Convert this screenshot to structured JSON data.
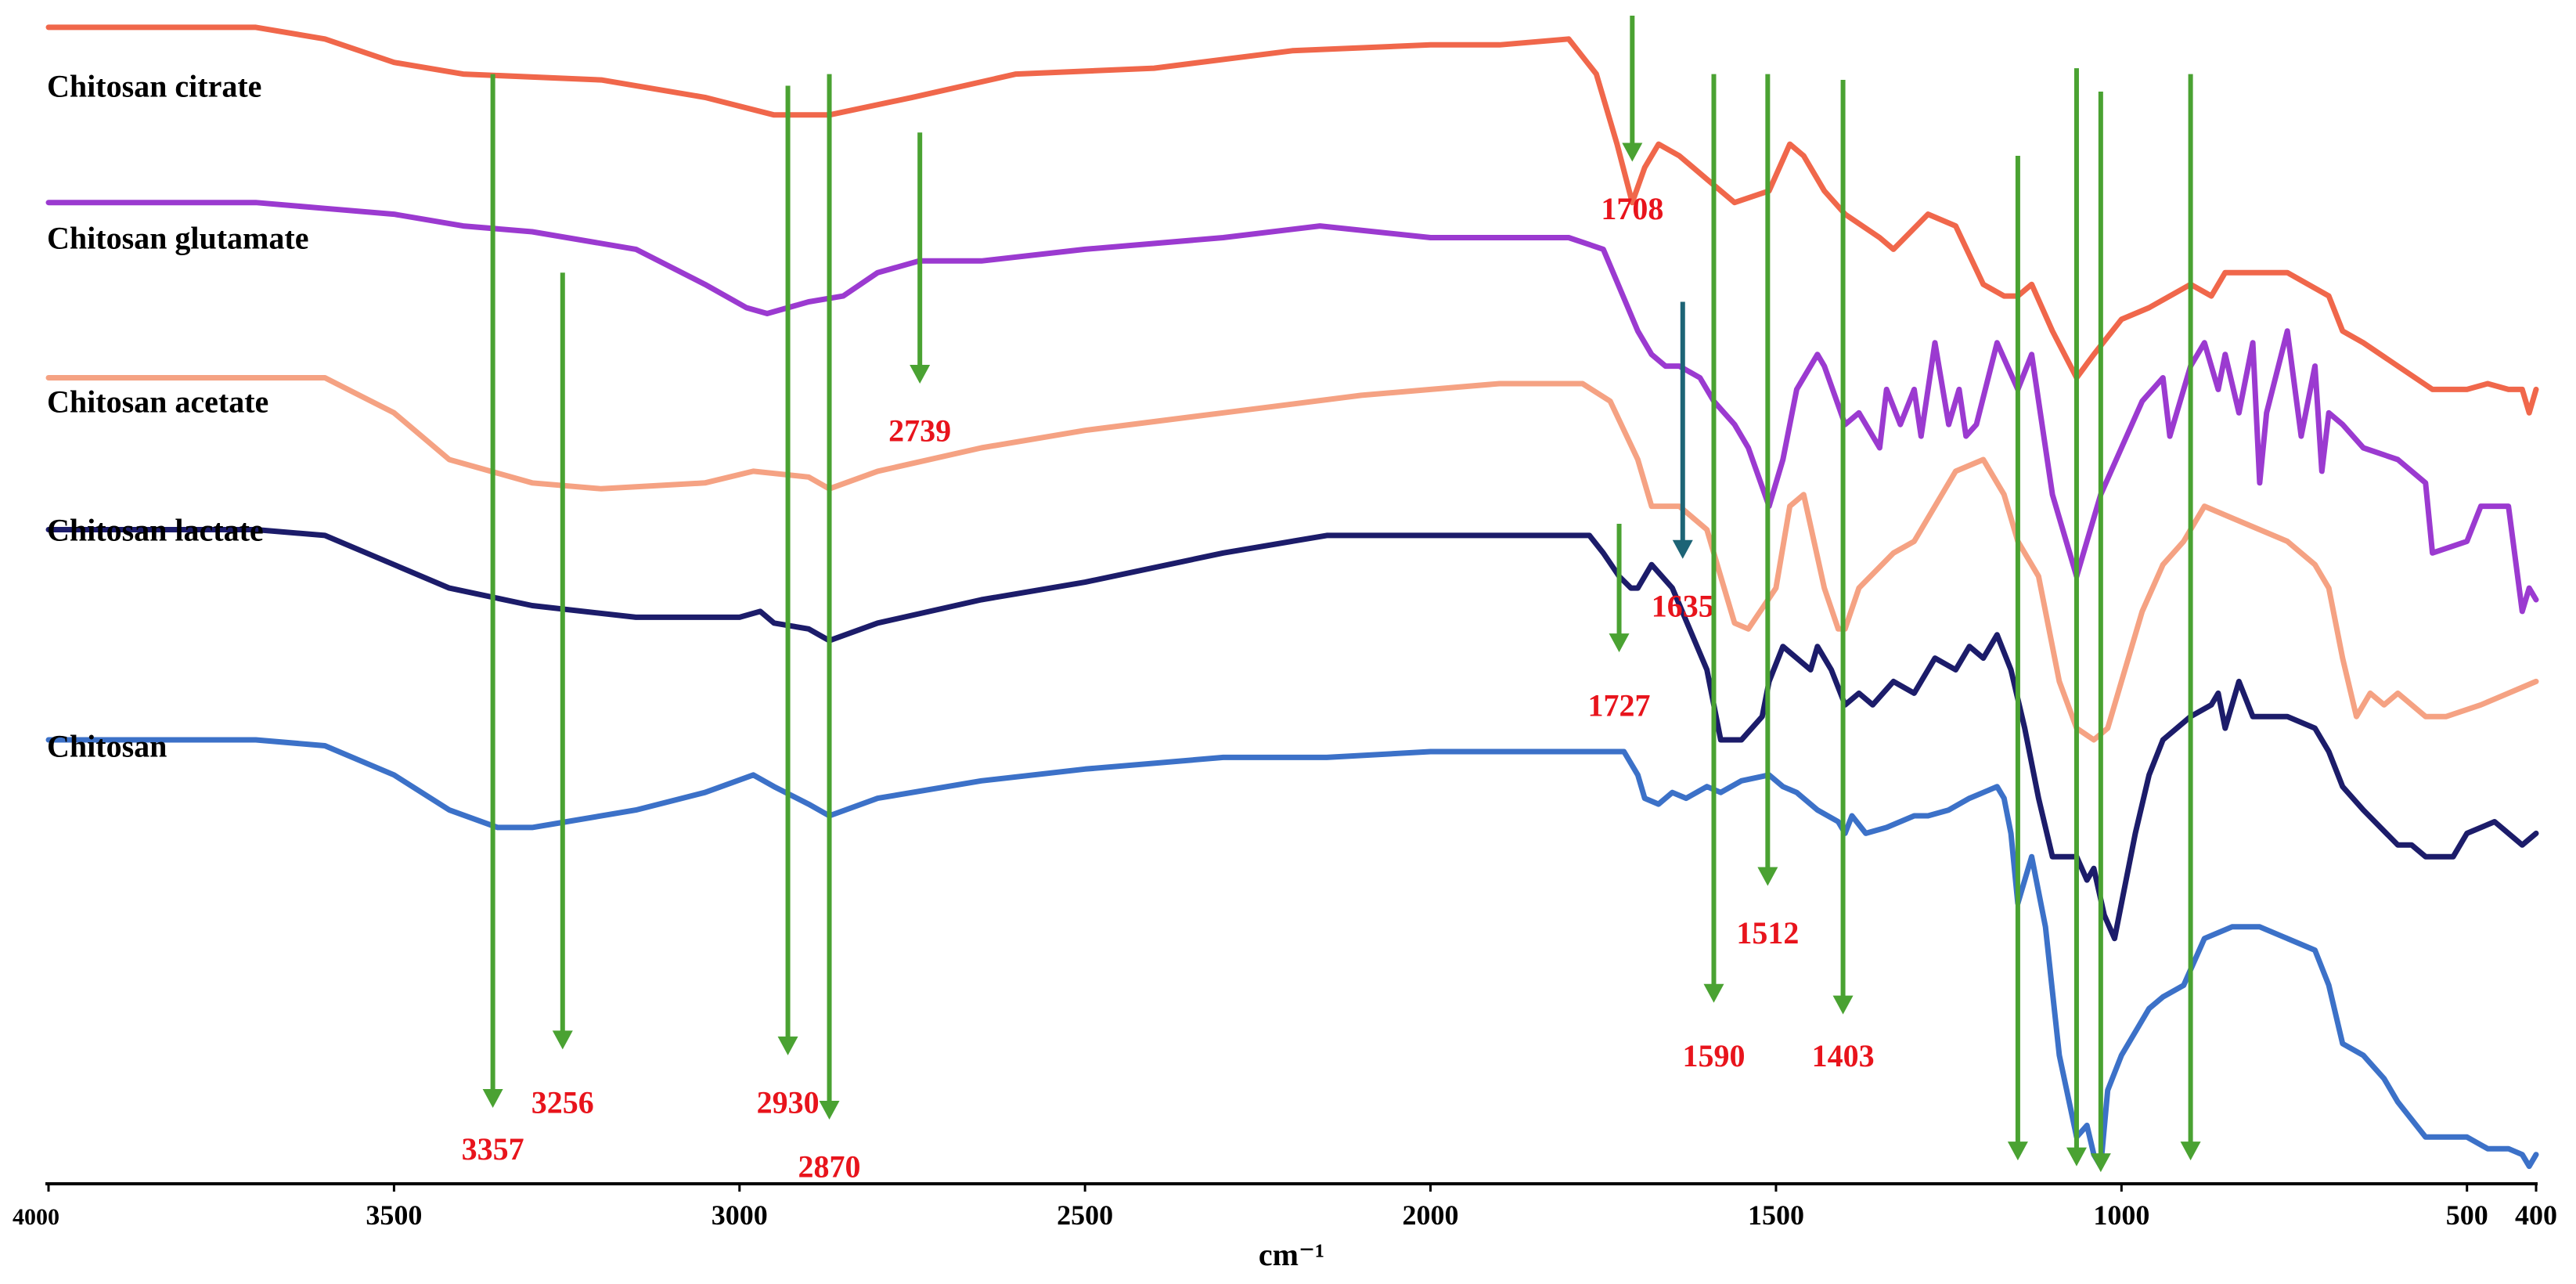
{
  "chart_data": {
    "type": "line",
    "xlabel": "cm⁻¹",
    "x_reversed": true,
    "xlim": [
      4000,
      400
    ],
    "x_ticks": [
      {
        "value": 4000,
        "label": "4000"
      },
      {
        "value": 3500,
        "label": "3500"
      },
      {
        "value": 3000,
        "label": "3000"
      },
      {
        "value": 2500,
        "label": "2500"
      },
      {
        "value": 2000,
        "label": "2000"
      },
      {
        "value": 1500,
        "label": "1500"
      },
      {
        "value": 1000,
        "label": "1000"
      },
      {
        "value": 500,
        "label": "500"
      },
      {
        "value": 400,
        "label": "400"
      }
    ],
    "ylim": [
      0,
      100
    ],
    "grid": false,
    "legend": "none",
    "series": [
      {
        "name": "Chitosan citrate",
        "color": "#f0674b",
        "label_y": 94,
        "x": [
          4000,
          3700,
          3600,
          3500,
          3400,
          3200,
          3050,
          2950,
          2870,
          2750,
          2600,
          2400,
          2200,
          2000,
          1900,
          1800,
          1760,
          1730,
          1708,
          1690,
          1670,
          1640,
          1600,
          1560,
          1510,
          1480,
          1460,
          1430,
          1400,
          1350,
          1330,
          1280,
          1240,
          1200,
          1170,
          1150,
          1130,
          1100,
          1065,
          1040,
          1000,
          960,
          900,
          870,
          850,
          800,
          760,
          700,
          680,
          650,
          600,
          550,
          500,
          470,
          440,
          420,
          410,
          400
        ],
        "y": [
          99,
          99,
          98,
          96,
          95,
          94.5,
          93,
          91.5,
          91.5,
          93,
          95,
          95.5,
          97,
          97.5,
          97.5,
          98,
          95,
          89,
          84,
          87,
          89,
          88,
          86,
          84,
          85,
          89,
          88,
          85,
          83,
          81,
          80,
          83,
          82,
          77,
          76,
          76,
          77,
          73,
          69,
          71,
          74,
          75,
          77,
          76,
          78,
          78,
          78,
          76,
          73,
          72,
          70,
          68,
          68,
          68.5,
          68,
          68,
          66,
          68
        ]
      },
      {
        "name": "Chitosan glutamate",
        "color": "#9b3ad0",
        "label_y": 81,
        "x": [
          4000,
          3700,
          3600,
          3500,
          3400,
          3300,
          3150,
          3050,
          2990,
          2960,
          2900,
          2850,
          2800,
          2740,
          2650,
          2500,
          2300,
          2160,
          2000,
          1800,
          1750,
          1700,
          1680,
          1660,
          1640,
          1610,
          1590,
          1560,
          1540,
          1510,
          1490,
          1470,
          1440,
          1430,
          1400,
          1380,
          1350,
          1340,
          1320,
          1300,
          1290,
          1270,
          1250,
          1235,
          1225,
          1210,
          1180,
          1150,
          1130,
          1100,
          1065,
          1050,
          1030,
          1000,
          970,
          940,
          930,
          900,
          880,
          860,
          850,
          830,
          810,
          800,
          790,
          760,
          740,
          720,
          710,
          700,
          680,
          650,
          600,
          560,
          550,
          500,
          480,
          440,
          420,
          410,
          400
        ],
        "y": [
          84,
          84,
          83.5,
          83,
          82,
          81.5,
          80,
          77,
          75,
          74.5,
          75.5,
          76,
          78,
          79,
          79,
          80,
          81,
          82,
          81,
          81,
          80,
          73,
          71,
          70,
          70,
          69,
          67,
          65,
          63,
          58,
          62,
          68,
          71,
          70,
          65,
          66,
          63,
          68,
          65,
          68,
          64,
          72,
          65,
          68,
          64,
          65,
          72,
          68,
          71,
          59,
          52,
          55,
          59,
          63,
          67,
          69,
          64,
          70,
          72,
          68,
          71,
          66,
          72,
          60,
          66,
          73,
          64,
          70,
          61,
          66,
          65,
          63,
          62,
          60,
          54,
          55,
          58,
          58,
          49,
          51,
          50
        ]
      },
      {
        "name": "Chitosan acetate",
        "color": "#f5a283",
        "label_y": 67,
        "x": [
          4000,
          3700,
          3600,
          3500,
          3420,
          3300,
          3200,
          3050,
          2980,
          2900,
          2870,
          2800,
          2650,
          2500,
          2300,
          2100,
          2000,
          1900,
          1780,
          1740,
          1700,
          1680,
          1640,
          1600,
          1580,
          1560,
          1540,
          1500,
          1480,
          1460,
          1430,
          1410,
          1400,
          1380,
          1330,
          1300,
          1270,
          1240,
          1200,
          1170,
          1150,
          1120,
          1090,
          1065,
          1040,
          1020,
          1000,
          970,
          940,
          910,
          880,
          840,
          800,
          760,
          720,
          700,
          680,
          660,
          640,
          620,
          600,
          560,
          530,
          480,
          440,
          420,
          400
        ],
        "y": [
          69,
          69,
          69,
          66,
          62,
          60,
          59.5,
          60,
          61,
          60.5,
          59.5,
          61,
          63,
          64.5,
          66,
          67.5,
          68,
          68.5,
          68.5,
          67,
          62,
          58,
          58,
          56,
          52,
          48,
          47.5,
          51,
          58,
          59,
          51,
          47.5,
          47.5,
          51,
          54,
          55,
          58,
          61,
          62,
          59,
          55,
          52,
          43,
          39,
          38,
          39,
          43,
          49,
          53,
          55,
          58,
          57,
          56,
          55,
          53,
          51,
          45,
          40,
          42,
          41,
          42,
          40,
          40,
          41,
          42,
          42.5,
          43
        ]
      },
      {
        "name": "Chitosan lactate",
        "color": "#1c1c6a",
        "label_y": 56,
        "x": [
          4000,
          3700,
          3600,
          3500,
          3420,
          3300,
          3150,
          3050,
          3000,
          2970,
          2950,
          2900,
          2870,
          2800,
          2650,
          2500,
          2300,
          2150,
          2000,
          1800,
          1770,
          1750,
          1727,
          1710,
          1700,
          1680,
          1650,
          1600,
          1580,
          1550,
          1520,
          1510,
          1490,
          1470,
          1450,
          1440,
          1420,
          1400,
          1380,
          1360,
          1330,
          1300,
          1270,
          1240,
          1220,
          1200,
          1180,
          1160,
          1140,
          1120,
          1100,
          1065,
          1050,
          1040,
          1025,
          1010,
          1000,
          980,
          960,
          940,
          900,
          870,
          860,
          850,
          830,
          810,
          780,
          760,
          720,
          700,
          680,
          650,
          600,
          580,
          560,
          520,
          500,
          460,
          440,
          420,
          400
        ],
        "y": [
          56,
          56,
          55.5,
          53,
          51,
          49.5,
          48.5,
          48.5,
          48.5,
          49,
          48,
          47.5,
          46.5,
          48,
          50,
          51.5,
          54,
          55.5,
          55.5,
          55.5,
          55.5,
          54,
          52,
          51,
          51,
          53,
          51,
          44,
          38,
          38,
          40,
          43,
          46,
          45,
          44,
          46,
          44,
          41,
          42,
          41,
          43,
          42,
          45,
          44,
          46,
          45,
          47,
          44,
          39,
          33,
          28,
          28,
          26,
          27,
          23,
          21,
          24,
          30,
          35,
          38,
          40,
          41,
          42,
          39,
          43,
          40,
          40,
          40,
          39,
          37,
          34,
          32,
          29,
          29,
          28,
          28,
          30,
          31,
          30,
          29,
          30
        ]
      },
      {
        "name": "Chitosan",
        "color": "#3c71c8",
        "label_y": 37.5,
        "x": [
          4000,
          3700,
          3600,
          3500,
          3420,
          3350,
          3300,
          3250,
          3150,
          3050,
          2980,
          2950,
          2900,
          2870,
          2800,
          2650,
          2500,
          2300,
          2150,
          2000,
          1800,
          1760,
          1720,
          1700,
          1690,
          1670,
          1650,
          1630,
          1600,
          1580,
          1550,
          1510,
          1490,
          1470,
          1440,
          1410,
          1400,
          1390,
          1370,
          1340,
          1300,
          1280,
          1250,
          1220,
          1200,
          1180,
          1170,
          1160,
          1150,
          1130,
          1110,
          1090,
          1065,
          1050,
          1040,
          1030,
          1020,
          1000,
          980,
          960,
          940,
          910,
          880,
          840,
          800,
          760,
          720,
          700,
          680,
          650,
          620,
          600,
          560,
          530,
          500,
          470,
          440,
          420,
          410,
          400
        ],
        "y": [
          38,
          38,
          37.5,
          35,
          32,
          30.5,
          30.5,
          31,
          32,
          33.5,
          35,
          34,
          32.5,
          31.5,
          33,
          34.5,
          35.5,
          36.5,
          36.5,
          37,
          37,
          37,
          37,
          35,
          33,
          32.5,
          33.5,
          33,
          34,
          33.5,
          34.5,
          35,
          34,
          33.5,
          32,
          31,
          30,
          31.5,
          30,
          30.5,
          31.5,
          31.5,
          32,
          33,
          33.5,
          34,
          33,
          30,
          24,
          28,
          22,
          11,
          4,
          5,
          2.5,
          1.5,
          8,
          11,
          13,
          15,
          16,
          17,
          21,
          22,
          22,
          21,
          20,
          17,
          12,
          11,
          9,
          7,
          4,
          4,
          4,
          3,
          3,
          2.5,
          1.5,
          2.5
        ]
      }
    ],
    "annotations": [
      {
        "label": "3357",
        "x": 3357,
        "y_top": 95,
        "y_bottom": 6.5,
        "color": "#4aa232",
        "label_y": 3
      },
      {
        "label": "3256",
        "x": 3256,
        "y_top": 78,
        "y_bottom": 11.5,
        "color": "#4aa232",
        "label_y": 7
      },
      {
        "label": "2930",
        "x": 2930,
        "y_top": 94,
        "y_bottom": 11,
        "color": "#4aa232",
        "label_y": 7
      },
      {
        "label": "2870",
        "x": 2870,
        "y_top": 95,
        "y_bottom": 5.5,
        "color": "#4aa232",
        "label_y": 1.5
      },
      {
        "label": "2739",
        "x": 2739,
        "y_top": 90,
        "y_bottom": 68.5,
        "color": "#4aa232",
        "label_y": 64.5
      },
      {
        "label": "1708",
        "x": 1708,
        "y_top": 100,
        "y_bottom": 87.5,
        "color": "#4aa232",
        "label_y": 83.5
      },
      {
        "label": "1727",
        "x": 1727,
        "y_top": 56.5,
        "y_bottom": 45.5,
        "color": "#4aa232",
        "label_y": 41
      },
      {
        "label": "1635",
        "x": 1635,
        "y_top": 75.5,
        "y_bottom": 53.5,
        "color": "#1d6476",
        "label_y": 49.5
      },
      {
        "label": "1590",
        "x": 1590,
        "y_top": 95,
        "y_bottom": 15.5,
        "color": "#4aa232",
        "label_y": 11
      },
      {
        "label": "1512",
        "x": 1512,
        "y_top": 95,
        "y_bottom": 25.5,
        "color": "#4aa232",
        "label_y": 21.5
      },
      {
        "label": "1403",
        "x": 1403,
        "y_top": 94.5,
        "y_bottom": 14.5,
        "color": "#4aa232",
        "label_y": 11
      },
      {
        "label": "",
        "x": 1150,
        "y_top": 88,
        "y_bottom": 2,
        "color": "#4aa232",
        "label_y": null
      },
      {
        "label": "",
        "x": 1065,
        "y_top": 95.5,
        "y_bottom": 1.5,
        "color": "#4aa232",
        "label_y": null
      },
      {
        "label": "",
        "x": 1030,
        "y_top": 93.5,
        "y_bottom": 1,
        "color": "#4aa232",
        "label_y": null
      },
      {
        "label": "",
        "x": 900,
        "y_top": 95,
        "y_bottom": 2,
        "color": "#4aa232",
        "label_y": null
      }
    ]
  }
}
